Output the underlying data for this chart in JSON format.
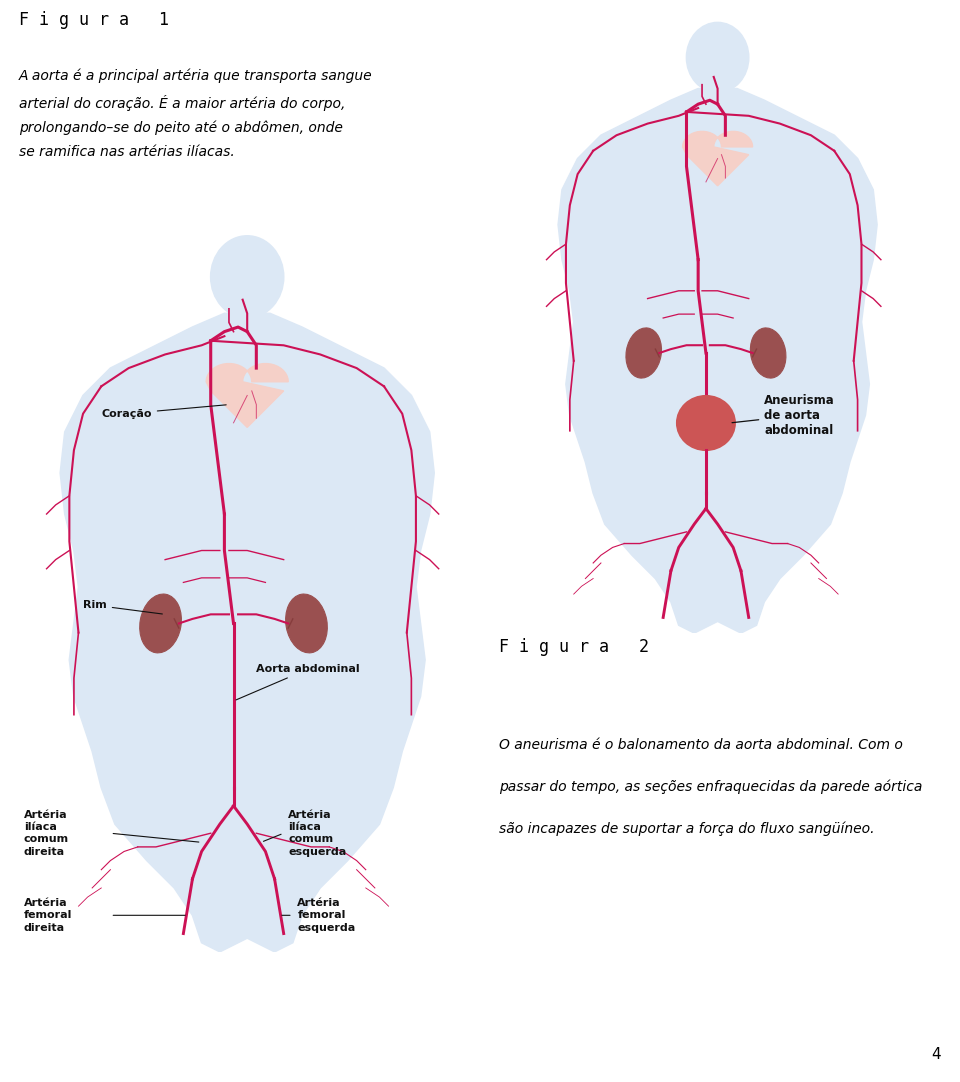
{
  "bg_color": "#ffffff",
  "fig1_title": "F i g u r a   1",
  "fig1_text_line1": "A aorta é a principal artéria que transporta sangue",
  "fig1_text_line2": "arterial do coração. É a maior artéria do corpo,",
  "fig1_text_line3": "prolongando–se do peito até o abdômen, onde",
  "fig1_text_line4": "se ramifica nas artérias ilíacas.",
  "fig2_title": "F i g u r a   2",
  "fig2_text_line1": "O aneurisma é o balonamento da aorta abdominal. Com o",
  "fig2_text_line2": "passar do tempo, as seções enfraquecidas da parede aórtica",
  "fig2_text_line3": "são incapazes de suportar a força do fluxo sangüíneo.",
  "body_fill_color": "#dce8f5",
  "body_outline_color": "#9ab0c8",
  "artery_color": "#cc1155",
  "heart_fill_color": "#f5d0c8",
  "kidney_fill_color": "#9a5050",
  "aneurysm_fill_color": "#cc5555",
  "label_color": "#111111",
  "page_number": "4"
}
